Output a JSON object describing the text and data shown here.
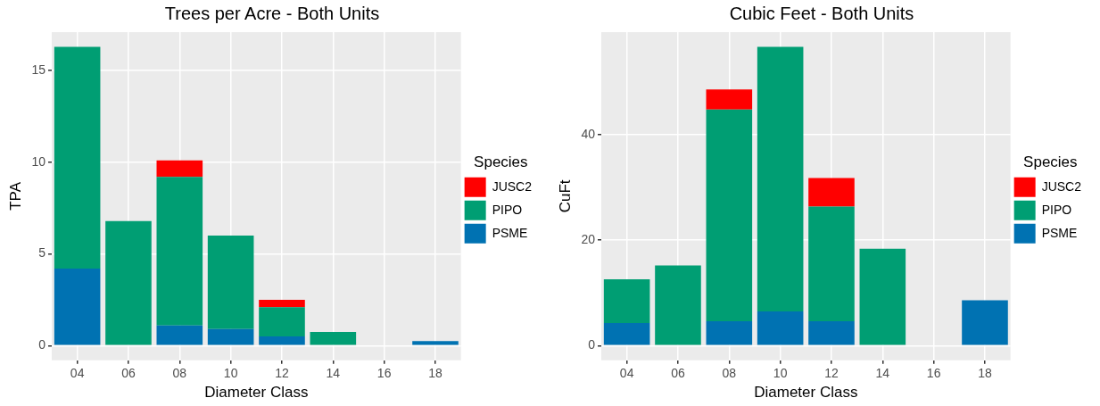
{
  "chart_data": [
    {
      "type": "bar",
      "title": "Trees per Acre - Both Units",
      "xlabel": "Diameter Class",
      "ylabel": "TPA",
      "legend_title": "Species",
      "legend": "right",
      "grid": true,
      "stacked": true,
      "categories": [
        "04",
        "06",
        "08",
        "10",
        "12",
        "14",
        "16",
        "18"
      ],
      "ylim": [
        -0.8,
        17.1
      ],
      "yticks": [
        0,
        5,
        10,
        15
      ],
      "series": [
        {
          "name": "PSME",
          "color": "#0072b2",
          "values": [
            4.2,
            null,
            1.1,
            0.9,
            0.5,
            null,
            null,
            0.25
          ]
        },
        {
          "name": "PIPO",
          "color": "#009e73",
          "values": [
            12.1,
            6.8,
            8.1,
            5.1,
            1.6,
            0.75,
            null,
            null
          ]
        },
        {
          "name": "JUSC2",
          "color": "#ff0000",
          "values": [
            null,
            null,
            0.9,
            null,
            0.4,
            null,
            null,
            null
          ]
        }
      ]
    },
    {
      "type": "bar",
      "title": "Cubic Feet - Both Units",
      "xlabel": "Diameter Class",
      "ylabel": "CuFt",
      "legend_title": "Species",
      "legend": "right",
      "grid": true,
      "stacked": true,
      "categories": [
        "04",
        "06",
        "08",
        "10",
        "12",
        "14",
        "16",
        "18"
      ],
      "ylim": [
        -2.8,
        59.5
      ],
      "yticks": [
        0,
        20,
        40
      ],
      "series": [
        {
          "name": "PSME",
          "color": "#0072b2",
          "values": [
            4.3,
            null,
            4.6,
            6.5,
            4.6,
            null,
            null,
            8.6
          ]
        },
        {
          "name": "PIPO",
          "color": "#009e73",
          "values": [
            8.3,
            15.2,
            40.2,
            50.2,
            21.8,
            18.4,
            null,
            null
          ]
        },
        {
          "name": "JUSC2",
          "color": "#ff0000",
          "values": [
            null,
            null,
            3.8,
            null,
            5.4,
            null,
            null,
            null
          ]
        }
      ]
    }
  ]
}
